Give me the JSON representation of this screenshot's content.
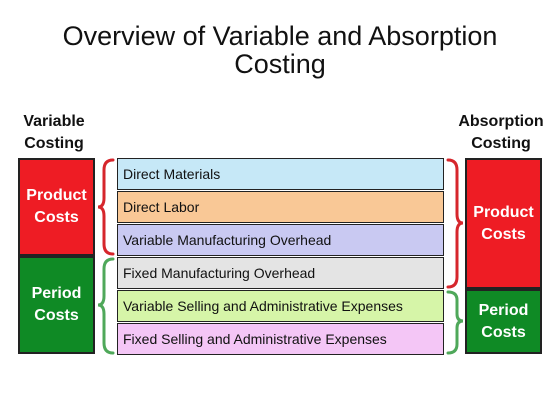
{
  "title": "Overview of Variable and Absorption\nCosting",
  "left_header": "Variable\nCosting",
  "right_header": "Absorption\nCosting",
  "left_boxes": [
    {
      "label": "Product\nCosts",
      "color": "#ee1c24"
    },
    {
      "label": "Period\nCosts",
      "color": "#0f8a25"
    }
  ],
  "right_boxes": [
    {
      "label": "Product\nCosts",
      "color": "#ee1c24"
    },
    {
      "label": "Period\nCosts",
      "color": "#0f8a25"
    }
  ],
  "rows": [
    {
      "label": "Direct Materials",
      "color": "#c6e8f7"
    },
    {
      "label": "Direct Labor",
      "color": "#f9c896"
    },
    {
      "label": "Variable Manufacturing Overhead",
      "color": "#c9c9f2"
    },
    {
      "label": "Fixed Manufacturing Overhead",
      "color": "#e4e4e4"
    },
    {
      "label": "Variable Selling and Administrative Expenses",
      "color": "#d6f5a8"
    },
    {
      "label": "Fixed Selling and Administrative Expenses",
      "color": "#f4c6f6"
    }
  ],
  "bracket_colors": {
    "product": "#d6262c",
    "period": "#4fa85a"
  }
}
